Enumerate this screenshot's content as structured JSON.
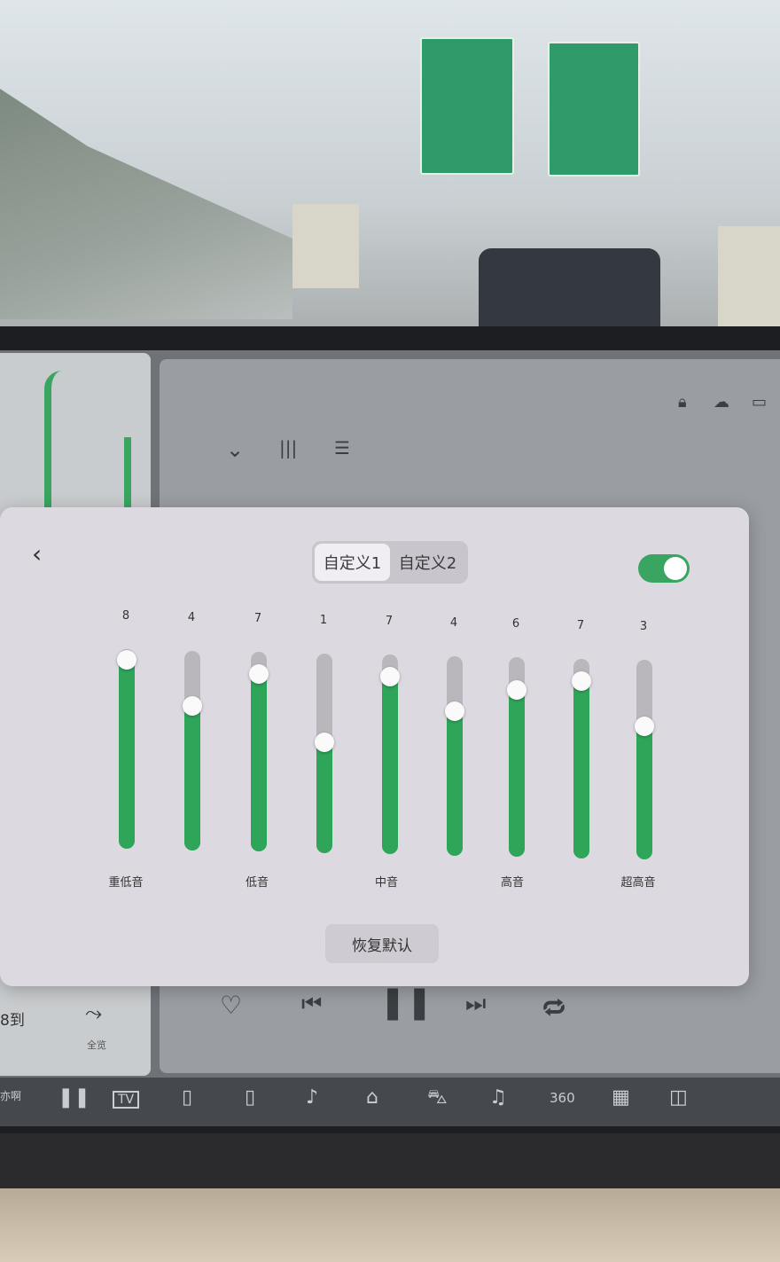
{
  "equalizer": {
    "tabs": [
      {
        "label": "自定义1",
        "active": true
      },
      {
        "label": "自定义2",
        "active": false
      }
    ],
    "enabled": true,
    "range": [
      -9,
      9
    ],
    "bands": [
      8,
      4,
      7,
      1,
      7,
      4,
      6,
      7,
      3
    ],
    "labels": [
      "重低音",
      "低音",
      "中音",
      "高音",
      "超高音"
    ],
    "reset_label": "恢复默认",
    "accent_color": "#2fa55a"
  },
  "map": {
    "eta_text": "8到",
    "overview_label": "全览"
  },
  "dock": {
    "left_text": "亦啊",
    "badge_360": "360",
    "tv": "TV"
  }
}
